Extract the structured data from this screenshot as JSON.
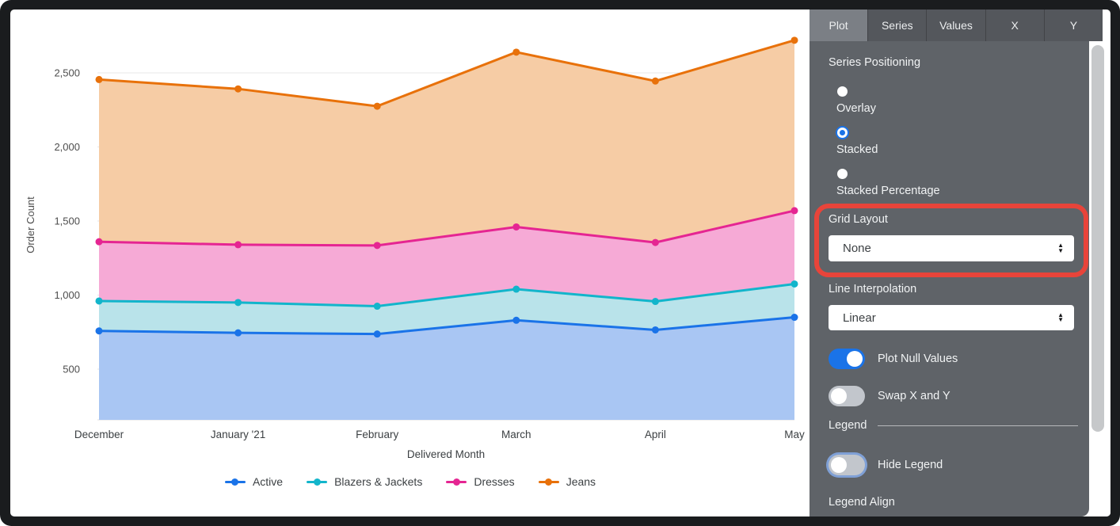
{
  "chart_data": {
    "type": "area",
    "stacked": true,
    "title": "",
    "xlabel": "Delivered Month",
    "ylabel": "Order Count",
    "categories": [
      "December",
      "January '21",
      "February",
      "March",
      "April",
      "May"
    ],
    "series": [
      {
        "name": "Active",
        "color": "#1a73e8",
        "fill": "#a9c6f3",
        "values": [
          758,
          745,
          737,
          830,
          765,
          850
        ]
      },
      {
        "name": "Blazers & Jackets",
        "color": "#12b5cb",
        "fill": "#b9e3ea",
        "values": [
          202,
          205,
          188,
          210,
          192,
          225
        ]
      },
      {
        "name": "Dresses",
        "color": "#e52592",
        "fill": "#f6aad6",
        "values": [
          400,
          390,
          410,
          420,
          398,
          495
        ]
      },
      {
        "name": "Jeans",
        "color": "#e8710a",
        "fill": "#f6cca5",
        "values": [
          1095,
          1052,
          940,
          1180,
          1090,
          1150
        ]
      }
    ],
    "y_ticks": [
      {
        "value": 500,
        "label": "500"
      },
      {
        "value": 1000,
        "label": "1,000"
      },
      {
        "value": 1500,
        "label": "1,500"
      },
      {
        "value": 2000,
        "label": "2,000"
      },
      {
        "value": 2500,
        "label": "2,500"
      }
    ],
    "ylim": [
      150,
      2860
    ],
    "grid": true,
    "legend_position": "bottom"
  },
  "panel": {
    "tabs": [
      {
        "label": "Plot",
        "selected": true
      },
      {
        "label": "Series",
        "selected": false
      },
      {
        "label": "Values",
        "selected": false
      },
      {
        "label": "X",
        "selected": false
      },
      {
        "label": "Y",
        "selected": false
      }
    ],
    "series_positioning": {
      "label": "Series Positioning",
      "options": [
        {
          "label": "Overlay",
          "selected": false
        },
        {
          "label": "Stacked",
          "selected": true
        },
        {
          "label": "Stacked Percentage",
          "selected": false
        }
      ]
    },
    "grid_layout": {
      "label": "Grid Layout",
      "value": "None"
    },
    "line_interpolation": {
      "label": "Line Interpolation",
      "value": "Linear"
    },
    "plot_null_values": {
      "label": "Plot Null Values",
      "on": true
    },
    "swap_x_y": {
      "label": "Swap X and Y",
      "on": false
    },
    "legend_section": {
      "label": "Legend"
    },
    "hide_legend": {
      "label": "Hide Legend",
      "on": false
    },
    "legend_align": {
      "label": "Legend Align"
    },
    "accent_color": "#1a73e8"
  },
  "annotation": {
    "color": "#e8443a",
    "purpose": "highlight box around Grid Layout control"
  }
}
